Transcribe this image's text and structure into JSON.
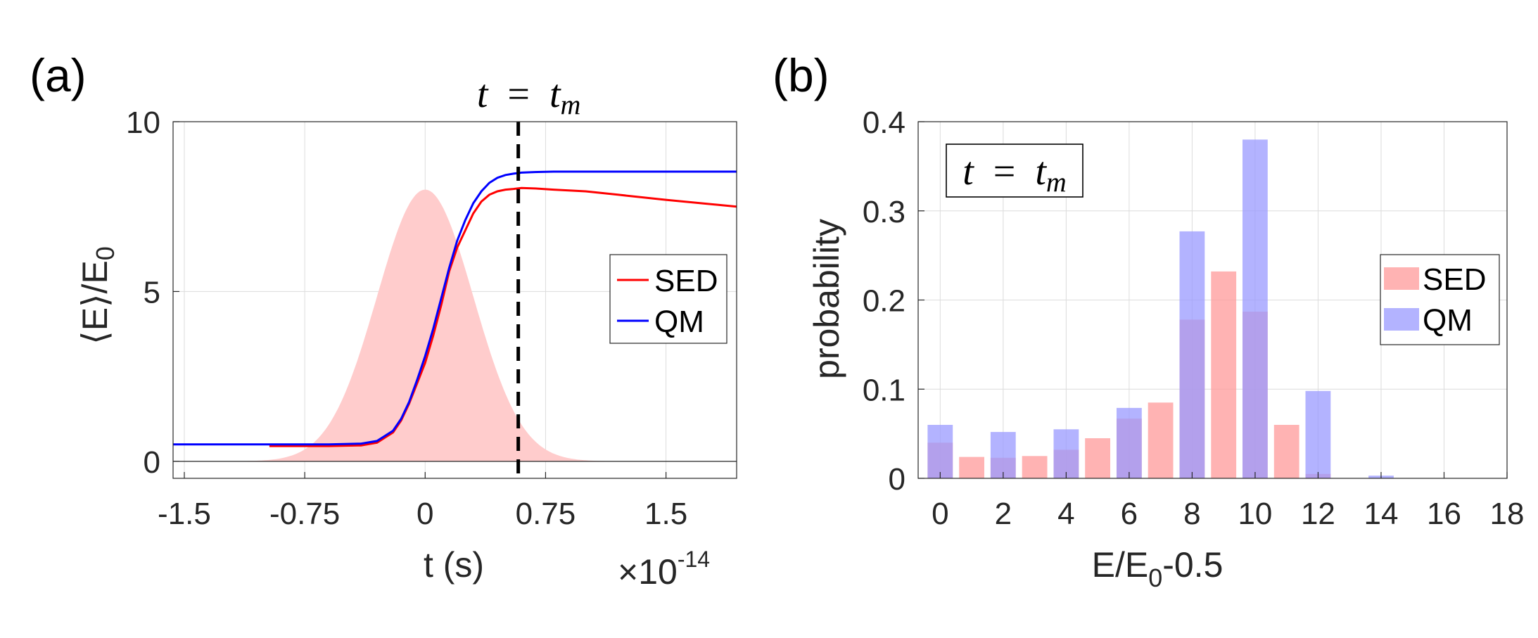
{
  "chart_data": [
    {
      "panel": "(a)",
      "type": "line",
      "xlabel": "t (s)",
      "x_multiplier": {
        "base": "×10",
        "exponent": "-14"
      },
      "ylabel": "⟨E⟩/E0",
      "ylabel_parts": {
        "main": "⟨E⟩/E",
        "sub": "0"
      },
      "xlim": [
        -1.57,
        1.94
      ],
      "ylim": [
        -0.5,
        10
      ],
      "xticks": [
        -1.5,
        -0.75,
        0,
        0.75,
        1.5
      ],
      "xtick_labels": [
        "-1.5",
        "-0.75",
        "0",
        "0.75",
        "1.5"
      ],
      "yticks": [
        0,
        5,
        10
      ],
      "ytick_labels": [
        "0",
        "5",
        "10"
      ],
      "grid": true,
      "legend_position": "right",
      "annotation": {
        "text": "t = tm",
        "t": "t",
        "eq": "=",
        "tm": "t",
        "tm_sub": "m",
        "x": 0.58
      },
      "series": [
        {
          "name": "SED",
          "color": "#ff0000",
          "x": [
            -0.97,
            -0.6,
            -0.4,
            -0.3,
            -0.2,
            -0.15,
            -0.1,
            -0.05,
            0,
            0.05,
            0.1,
            0.15,
            0.2,
            0.25,
            0.3,
            0.35,
            0.4,
            0.45,
            0.5,
            0.55,
            0.6,
            0.7,
            0.8,
            1.0,
            1.2,
            1.5,
            1.94
          ],
          "values": [
            0.45,
            0.45,
            0.47,
            0.55,
            0.85,
            1.2,
            1.7,
            2.3,
            2.9,
            3.7,
            4.6,
            5.6,
            6.3,
            6.8,
            7.3,
            7.65,
            7.85,
            7.95,
            8.0,
            8.02,
            8.05,
            8.03,
            8.0,
            7.95,
            7.85,
            7.7,
            7.5
          ]
        },
        {
          "name": "QM",
          "color": "#0000ff",
          "x": [
            -1.57,
            -0.6,
            -0.4,
            -0.3,
            -0.2,
            -0.15,
            -0.1,
            -0.05,
            0,
            0.05,
            0.1,
            0.15,
            0.2,
            0.25,
            0.3,
            0.35,
            0.4,
            0.45,
            0.5,
            0.55,
            0.6,
            0.7,
            0.8,
            1.0,
            1.2,
            1.5,
            1.94
          ],
          "values": [
            0.5,
            0.5,
            0.52,
            0.6,
            0.9,
            1.25,
            1.75,
            2.4,
            3.1,
            3.9,
            4.8,
            5.7,
            6.5,
            7.1,
            7.6,
            7.95,
            8.2,
            8.35,
            8.43,
            8.47,
            8.5,
            8.52,
            8.53,
            8.53,
            8.53,
            8.53,
            8.53
          ]
        }
      ],
      "pulse": {
        "label": "pulse",
        "color": "#ffcccc",
        "peak": 8.0,
        "center": 0,
        "sigma": 0.3
      }
    },
    {
      "panel": "(b)",
      "type": "bar",
      "xlabel": "E/E0-0.5",
      "xlabel_parts": {
        "pre": "E/E",
        "sub": "0",
        "post": "-0.5"
      },
      "ylabel": "probability",
      "xlim": [
        -0.7,
        18
      ],
      "ylim": [
        0,
        0.4
      ],
      "xticks": [
        0,
        2,
        4,
        6,
        8,
        10,
        12,
        14,
        16,
        18
      ],
      "xtick_labels": [
        "0",
        "2",
        "4",
        "6",
        "8",
        "10",
        "12",
        "14",
        "16",
        "18"
      ],
      "yticks": [
        0,
        0.1,
        0.2,
        0.3,
        0.4
      ],
      "ytick_labels": [
        "0",
        "0.1",
        "0.2",
        "0.3",
        "0.4"
      ],
      "grid": true,
      "legend_position": "right",
      "annotation": {
        "text": "t = tm",
        "t": "t",
        "eq": "=",
        "tm": "t",
        "tm_sub": "m"
      },
      "categories": [
        0,
        1,
        2,
        3,
        4,
        5,
        6,
        7,
        8,
        9,
        10,
        11,
        12,
        13,
        14,
        15,
        16,
        17
      ],
      "series": [
        {
          "name": "SED",
          "color": "#ff9999",
          "values": [
            0.04,
            0.024,
            0.023,
            0.025,
            0.032,
            0.045,
            0.067,
            0.085,
            0.178,
            0.232,
            0.187,
            0.06,
            0.005,
            0,
            0,
            0,
            0,
            0
          ]
        },
        {
          "name": "QM",
          "color": "#9999ff",
          "values": [
            0.06,
            0,
            0.052,
            0,
            0.055,
            0,
            0.079,
            0,
            0.277,
            0,
            0.38,
            0,
            0.098,
            0,
            0.003,
            0,
            0,
            0
          ]
        }
      ]
    }
  ]
}
